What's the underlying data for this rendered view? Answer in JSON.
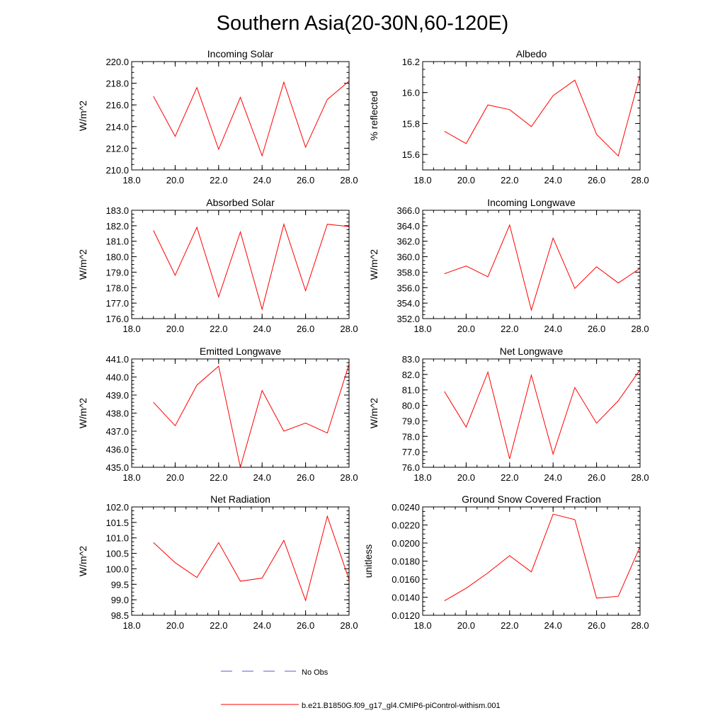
{
  "title": "Southern Asia(20-30N,60-120E)",
  "colors": {
    "model": "#ff0000",
    "obs": "#5a5ad0",
    "axis": "#000000"
  },
  "legend": {
    "obs_label": "No Obs",
    "model_label": "b.e21.B1850G.f09_g17_gl4.CMIP6-piControl-withism.001"
  },
  "chart_data": [
    {
      "type": "line",
      "title": "Incoming Solar",
      "ylabel": "W/m^2",
      "xlim": [
        18,
        28
      ],
      "ylim": [
        210,
        220
      ],
      "xticks": [
        18,
        20,
        22,
        24,
        26,
        28
      ],
      "yticks": [
        210,
        212,
        214,
        216,
        218,
        220
      ],
      "x_minor_step": 0.5,
      "y_minor_step": 0.5,
      "xdec": 1,
      "ydec": 1,
      "series": [
        {
          "name": "b.e21.B1850G.f09_g17_gl4.CMIP6-piControl-withism.001",
          "x": [
            19,
            20,
            21,
            22,
            23,
            24,
            25,
            26,
            27,
            28
          ],
          "values": [
            216.8,
            213.1,
            217.6,
            211.9,
            216.7,
            211.3,
            218.1,
            212.1,
            216.5,
            218.2
          ]
        }
      ]
    },
    {
      "type": "line",
      "title": "Albedo",
      "ylabel": "% reflected",
      "xlim": [
        18,
        28
      ],
      "ylim": [
        15.5,
        16.2
      ],
      "xticks": [
        18,
        20,
        22,
        24,
        26,
        28
      ],
      "yticks": [
        15.6,
        15.8,
        16.0,
        16.2
      ],
      "x_minor_step": 0.5,
      "y_minor_step": 0.05,
      "xdec": 1,
      "ydec": 1,
      "series": [
        {
          "name": "b.e21.B1850G.f09_g17_gl4.CMIP6-piControl-withism.001",
          "x": [
            19,
            20,
            21,
            22,
            23,
            24,
            25,
            26,
            27,
            28
          ],
          "values": [
            15.75,
            15.67,
            15.92,
            15.89,
            15.78,
            15.98,
            16.08,
            15.73,
            15.59,
            16.11
          ]
        }
      ]
    },
    {
      "type": "line",
      "title": "Absorbed Solar",
      "ylabel": "W/m^2",
      "xlim": [
        18,
        28
      ],
      "ylim": [
        176,
        183
      ],
      "xticks": [
        18,
        20,
        22,
        24,
        26,
        28
      ],
      "yticks": [
        176,
        177,
        178,
        179,
        180,
        181,
        182,
        183
      ],
      "x_minor_step": 0.5,
      "y_minor_step": 0.25,
      "xdec": 1,
      "ydec": 1,
      "series": [
        {
          "name": "b.e21.B1850G.f09_g17_gl4.CMIP6-piControl-withism.001",
          "x": [
            19,
            20,
            21,
            22,
            23,
            24,
            25,
            26,
            27,
            28
          ],
          "values": [
            181.7,
            178.8,
            181.9,
            177.4,
            181.6,
            176.6,
            182.1,
            177.8,
            182.1,
            181.95
          ]
        }
      ]
    },
    {
      "type": "line",
      "title": "Incoming Longwave",
      "ylabel": "W/m^2",
      "xlim": [
        18,
        28
      ],
      "ylim": [
        352,
        366
      ],
      "xticks": [
        18,
        20,
        22,
        24,
        26,
        28
      ],
      "yticks": [
        352,
        354,
        356,
        358,
        360,
        362,
        364,
        366
      ],
      "x_minor_step": 0.5,
      "y_minor_step": 0.5,
      "xdec": 1,
      "ydec": 1,
      "series": [
        {
          "name": "b.e21.B1850G.f09_g17_gl4.CMIP6-piControl-withism.001",
          "x": [
            19,
            20,
            21,
            22,
            23,
            24,
            25,
            26,
            27,
            28
          ],
          "values": [
            357.8,
            358.8,
            357.4,
            364.1,
            353.1,
            362.4,
            355.9,
            358.7,
            356.6,
            358.5
          ]
        }
      ]
    },
    {
      "type": "line",
      "title": "Emitted Longwave",
      "ylabel": "W/m^2",
      "xlim": [
        18,
        28
      ],
      "ylim": [
        435,
        441
      ],
      "xticks": [
        18,
        20,
        22,
        24,
        26,
        28
      ],
      "yticks": [
        435,
        436,
        437,
        438,
        439,
        440,
        441
      ],
      "x_minor_step": 0.5,
      "y_minor_step": 0.2,
      "xdec": 1,
      "ydec": 1,
      "series": [
        {
          "name": "b.e21.B1850G.f09_g17_gl4.CMIP6-piControl-withism.001",
          "x": [
            19,
            20,
            21,
            22,
            23,
            24,
            25,
            26,
            27,
            28
          ],
          "values": [
            438.6,
            437.3,
            439.55,
            440.6,
            435.0,
            439.25,
            437.0,
            437.45,
            436.9,
            440.7
          ]
        }
      ]
    },
    {
      "type": "line",
      "title": "Net Longwave",
      "ylabel": "W/m^2",
      "xlim": [
        18,
        28
      ],
      "ylim": [
        76,
        83
      ],
      "xticks": [
        18,
        20,
        22,
        24,
        26,
        28
      ],
      "yticks": [
        76,
        77,
        78,
        79,
        80,
        81,
        82,
        83
      ],
      "x_minor_step": 0.5,
      "y_minor_step": 0.25,
      "xdec": 1,
      "ydec": 1,
      "series": [
        {
          "name": "b.e21.B1850G.f09_g17_gl4.CMIP6-piControl-withism.001",
          "x": [
            19,
            20,
            21,
            22,
            23,
            24,
            25,
            26,
            27,
            28
          ],
          "values": [
            80.9,
            78.6,
            82.15,
            76.55,
            81.95,
            76.85,
            81.15,
            78.85,
            80.3,
            82.3
          ]
        }
      ]
    },
    {
      "type": "line",
      "title": "Net Radiation",
      "ylabel": "W/m^2",
      "xlim": [
        18,
        28
      ],
      "ylim": [
        98.5,
        102
      ],
      "xticks": [
        18,
        20,
        22,
        24,
        26,
        28
      ],
      "yticks": [
        98.5,
        99.0,
        99.5,
        100.0,
        100.5,
        101.0,
        101.5,
        102.0
      ],
      "x_minor_step": 0.5,
      "y_minor_step": 0.125,
      "xdec": 1,
      "ydec": 1,
      "series": [
        {
          "name": "b.e21.B1850G.f09_g17_gl4.CMIP6-piControl-withism.001",
          "x": [
            19,
            20,
            21,
            22,
            23,
            24,
            25,
            26,
            27,
            28
          ],
          "values": [
            100.85,
            100.2,
            99.72,
            100.85,
            99.6,
            99.7,
            100.92,
            98.98,
            101.7,
            99.65
          ]
        }
      ]
    },
    {
      "type": "line",
      "title": "Ground Snow Covered Fraction",
      "ylabel": "unitless",
      "xlim": [
        18,
        28
      ],
      "ylim": [
        0.012,
        0.024
      ],
      "xticks": [
        18,
        20,
        22,
        24,
        26,
        28
      ],
      "yticks": [
        0.012,
        0.014,
        0.016,
        0.018,
        0.02,
        0.022,
        0.024
      ],
      "x_minor_step": 0.5,
      "y_minor_step": 0.0005,
      "xdec": 1,
      "ydec": 4,
      "series": [
        {
          "name": "b.e21.B1850G.f09_g17_gl4.CMIP6-piControl-withism.001",
          "x": [
            19,
            20,
            21,
            22,
            23,
            24,
            25,
            26,
            27,
            28
          ],
          "values": [
            0.0136,
            0.015,
            0.0167,
            0.0186,
            0.0168,
            0.0232,
            0.0226,
            0.0139,
            0.0141,
            0.0196
          ]
        }
      ]
    }
  ]
}
